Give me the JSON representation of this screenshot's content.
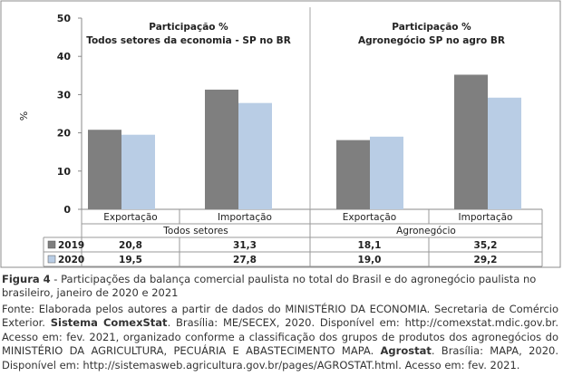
{
  "chart_data": {
    "type": "bar",
    "ylabel": "%",
    "ylim": [
      0,
      50
    ],
    "yticks": [
      0,
      10,
      20,
      30,
      40,
      50
    ],
    "panels": [
      {
        "title_line1": "Participação %",
        "title_line2": "Todos setores da economia - SP no BR",
        "group": "Todos setores",
        "categories": [
          "Exportação",
          "Importação"
        ]
      },
      {
        "title_line1": "Participação %",
        "title_line2": "Agronegócio SP no agro BR",
        "group": "Agronegócio",
        "categories": [
          "Exportação",
          "Importação"
        ]
      }
    ],
    "series": [
      {
        "name": "2019",
        "color": "#7f7f7f",
        "values": [
          20.8,
          31.3,
          18.1,
          35.2
        ],
        "labels": [
          "20,8",
          "31,3",
          "18,1",
          "35,2"
        ]
      },
      {
        "name": "2020",
        "color": "#b9cde5",
        "values": [
          19.5,
          27.8,
          19.0,
          29.2
        ],
        "labels": [
          "19,5",
          "27,8",
          "19,0",
          "29,2"
        ]
      }
    ],
    "grid": false,
    "legend": "table-left"
  },
  "caption": {
    "figure_label": "Figura 4",
    "figure_text": " - Participações da balança comercial paulista no total do Brasil e do agronegócio paulista no brasileiro, janeiro de 2020 e 2021",
    "source_a": "Fonte: Elaborada pelos autores a partir de dados do MINISTÉRIO DA ECONOMIA. Secretaria de Comércio Exterior. ",
    "source_b": "Sistema ComexStat",
    "source_c": ". Brasília: ME/SECEX, 2020. Disponível em: http://comexstat.mdic.gov.br. Acesso em: fev. 2021, organizado conforme a classificação dos grupos de produtos dos agronegócios do MINISTÉRIO DA AGRICULTURA, PECUÁRIA E ABASTECIMENTO MAPA. ",
    "source_d": "Agrostat",
    "source_e": ". Brasília: MAPA, 2020. Disponível em: http://sistemasweb.agricultura.gov.br/pages/AGROSTAT.html. Acesso em: fev. 2021."
  }
}
